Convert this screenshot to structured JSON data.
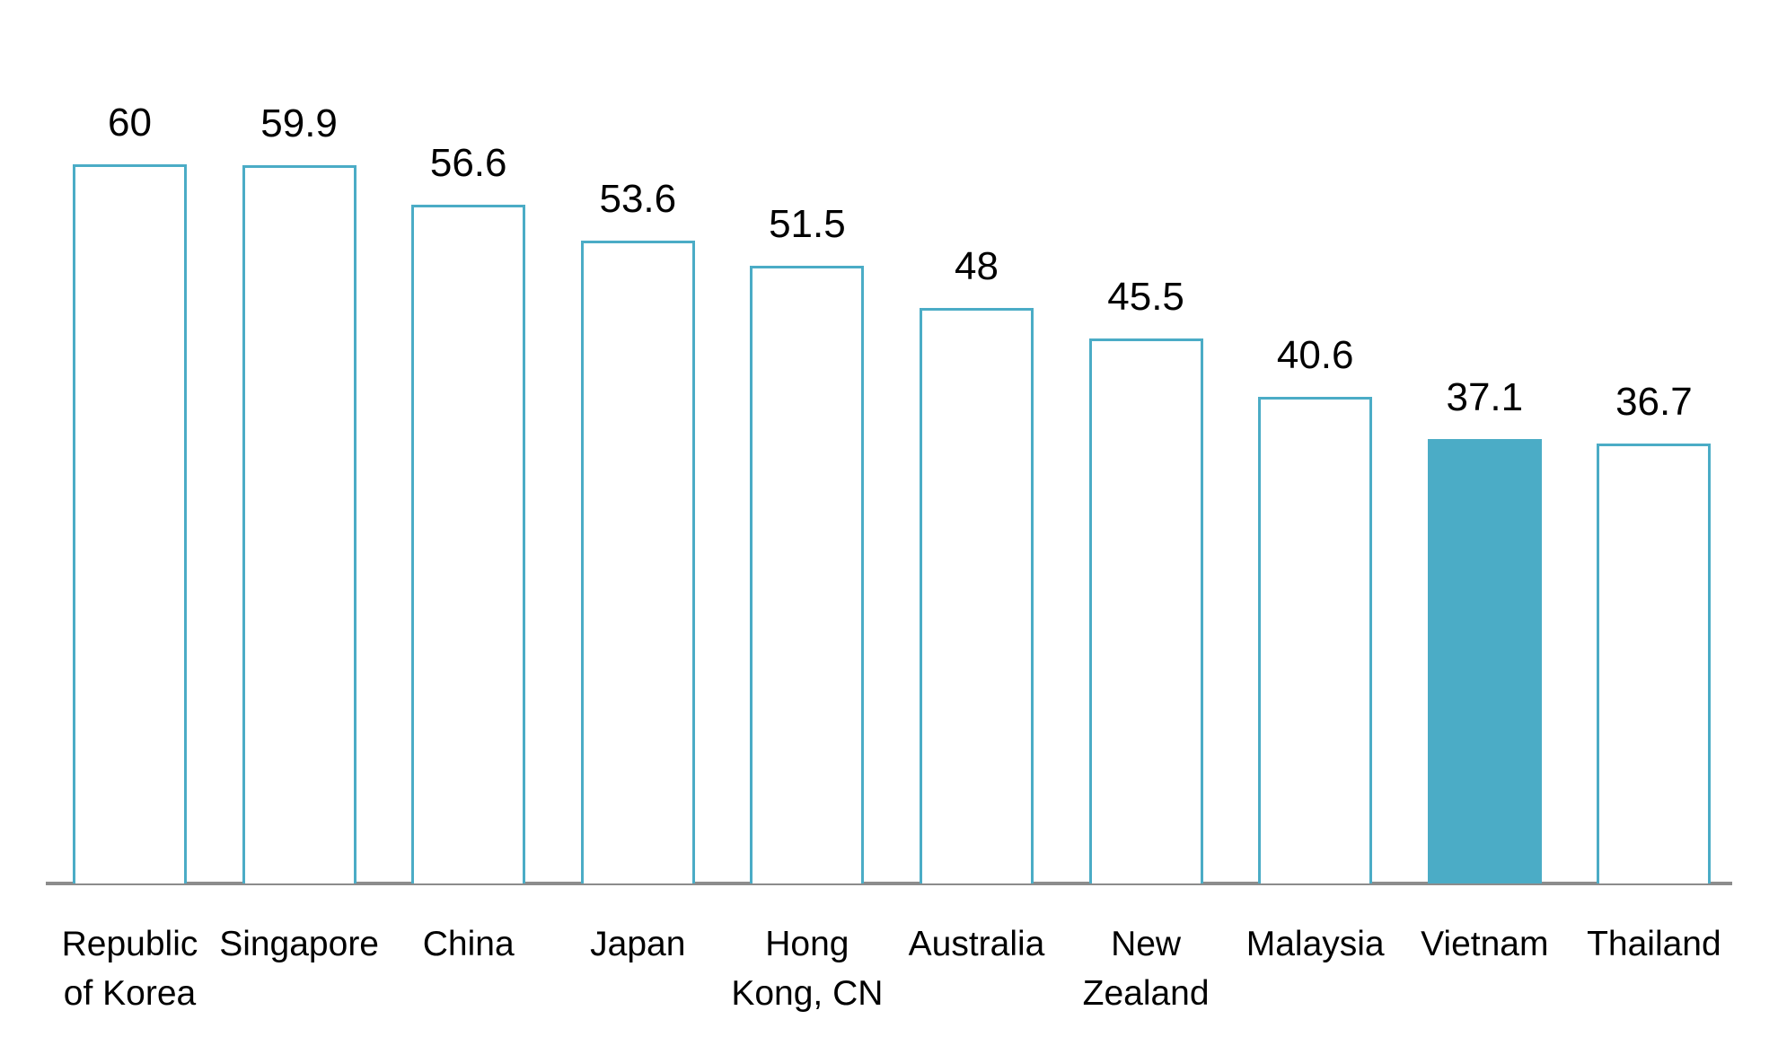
{
  "chart_data": {
    "type": "bar",
    "title": "",
    "xlabel": "",
    "ylabel": "",
    "ylim": [
      0,
      60
    ],
    "grid": false,
    "legend": null,
    "categories": [
      "Republic of Korea",
      "Singapore",
      "China",
      "Japan",
      "Hong Kong, CN",
      "Australia",
      "New Zealand",
      "Malaysia",
      "Vietnam",
      "Thailand"
    ],
    "category_lines": [
      [
        "Republic",
        "of Korea"
      ],
      [
        "Singapore"
      ],
      [
        "China"
      ],
      [
        "Japan"
      ],
      [
        "Hong",
        "Kong, CN"
      ],
      [
        "Australia"
      ],
      [
        "New",
        "Zealand"
      ],
      [
        "Malaysia"
      ],
      [
        "Vietnam"
      ],
      [
        "Thailand"
      ]
    ],
    "values": [
      60,
      59.9,
      56.6,
      53.6,
      51.5,
      48,
      45.5,
      40.6,
      37.1,
      36.7
    ],
    "value_labels": [
      "60",
      "59.9",
      "56.6",
      "53.6",
      "51.5",
      "48",
      "45.5",
      "40.6",
      "37.1",
      "36.7"
    ],
    "highlight_index": 8,
    "colors": {
      "bar_outline": "#4bacc6",
      "bar_highlight_fill": "#4bacc6",
      "bar_fill": "#ffffff",
      "axis": "#8c8c8c"
    }
  }
}
